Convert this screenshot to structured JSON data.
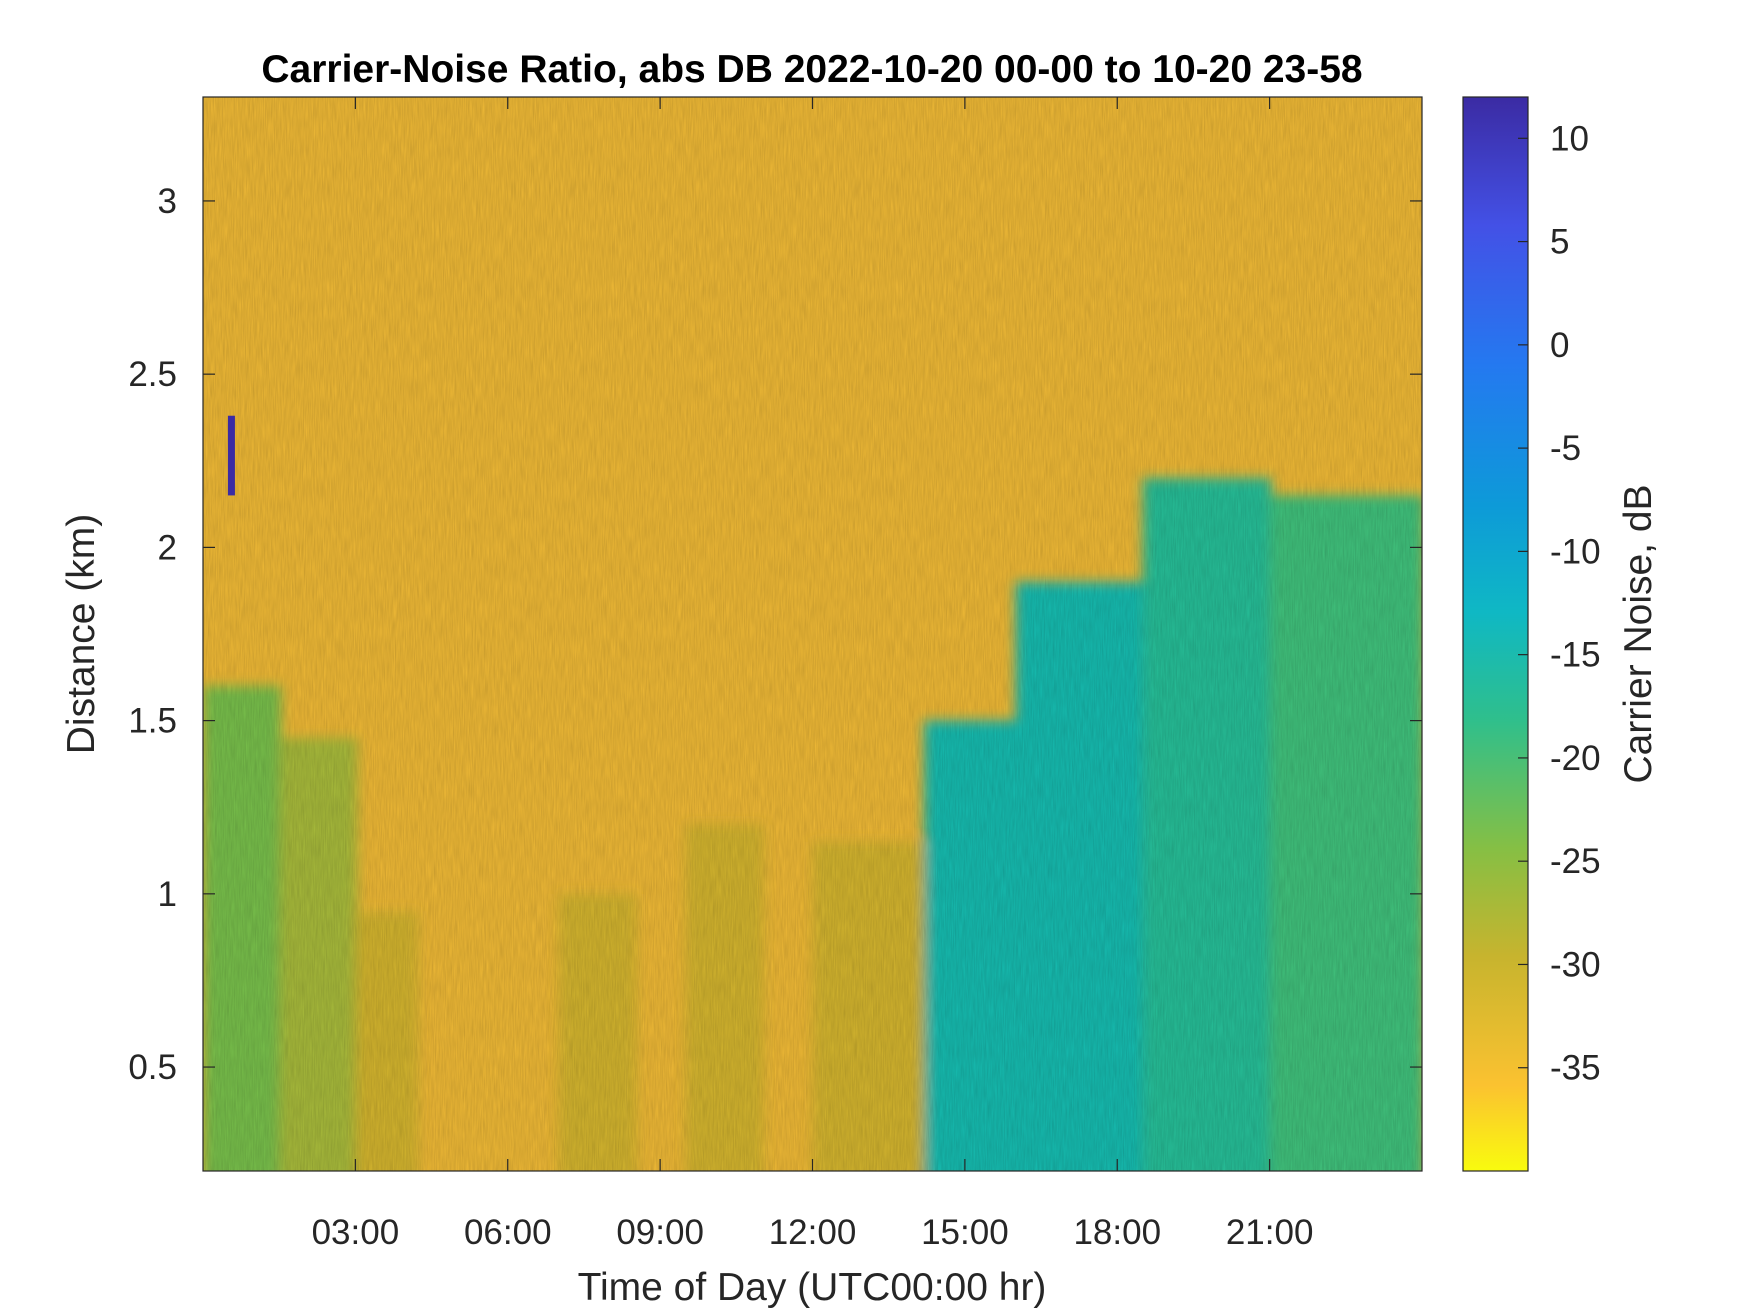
{
  "chart_data": {
    "type": "heatmap",
    "title": "Carrier-Noise Ratio, abs DB 2022-10-20 00-00 to 10-20 23-58",
    "xlabel": "Time of Day (UTC00:00 hr)",
    "ylabel": "Distance (km)",
    "x_range_hours": [
      0,
      24
    ],
    "y_range_km": [
      0.2,
      3.3
    ],
    "x_ticks": [
      "03:00",
      "06:00",
      "09:00",
      "12:00",
      "15:00",
      "18:00",
      "21:00"
    ],
    "x_tick_hours": [
      3,
      6,
      9,
      12,
      15,
      18,
      21
    ],
    "y_ticks": [
      "0.5",
      "1",
      "1.5",
      "2",
      "2.5",
      "3"
    ],
    "y_tick_values": [
      0.5,
      1,
      1.5,
      2,
      2.5,
      3
    ],
    "colorbar": {
      "label": "Carrier Noise, dB",
      "range": [
        -40,
        12
      ],
      "ticks": [
        "10",
        "5",
        "0",
        "-5",
        "-10",
        "-15",
        "-20",
        "-25",
        "-30",
        "-35"
      ],
      "tick_values": [
        10,
        5,
        0,
        -5,
        -10,
        -15,
        -20,
        -25,
        -30,
        -35
      ],
      "colormap": "parula-reversed"
    },
    "background_value_db": -32,
    "signal_regions": [
      {
        "hours": [
          0,
          1.5
        ],
        "top_km": 1.6,
        "value_db": -21
      },
      {
        "hours": [
          1.5,
          3.0
        ],
        "top_km": 1.45,
        "value_db": -25
      },
      {
        "hours": [
          3.0,
          4.2
        ],
        "top_km": 0.95,
        "value_db": -28
      },
      {
        "hours": [
          7.0,
          8.5
        ],
        "top_km": 1.0,
        "value_db": -28
      },
      {
        "hours": [
          9.5,
          11.0
        ],
        "top_km": 1.2,
        "value_db": -28
      },
      {
        "hours": [
          12.0,
          14.2
        ],
        "top_km": 1.15,
        "value_db": -28
      },
      {
        "hours": [
          14.2,
          16.0
        ],
        "top_km": 1.5,
        "value_db": -14
      },
      {
        "hours": [
          16.0,
          18.5
        ],
        "top_km": 1.9,
        "value_db": -13
      },
      {
        "hours": [
          18.5,
          21.0
        ],
        "top_km": 2.2,
        "value_db": -16
      },
      {
        "hours": [
          21.0,
          24.0
        ],
        "top_km": 2.15,
        "value_db": -20
      }
    ],
    "spike": {
      "hours": 0.55,
      "km_range": [
        2.15,
        2.38
      ],
      "value_db": 10
    }
  }
}
